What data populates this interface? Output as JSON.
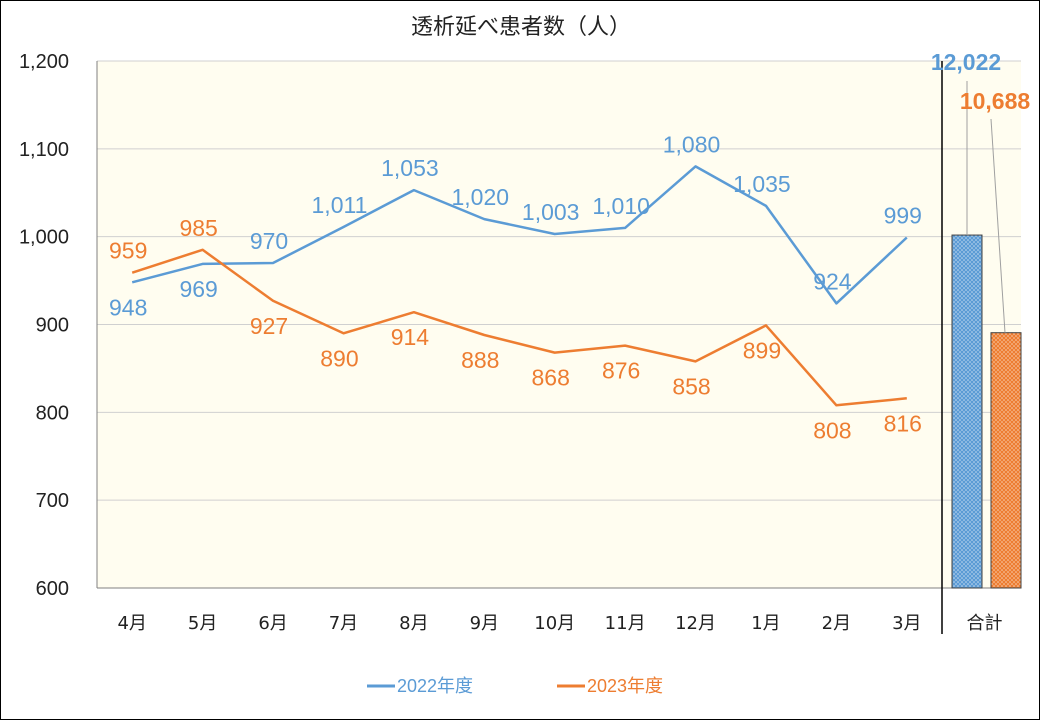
{
  "chart_data": {
    "type": "line",
    "title": "透析延べ患者数（人）",
    "categories": [
      "4月",
      "5月",
      "6月",
      "7月",
      "8月",
      "9月",
      "10月",
      "11月",
      "12月",
      "1月",
      "2月",
      "3月"
    ],
    "ylim": [
      600,
      1200
    ],
    "yticks": [
      600,
      700,
      800,
      900,
      1000,
      1100,
      1200
    ],
    "ytick_labels": [
      "600",
      "700",
      "800",
      "900",
      "1,000",
      "1,100",
      "1,200"
    ],
    "grid": true,
    "legend_position": "bottom",
    "series": [
      {
        "name": "2022年度",
        "color": "#5b9bd5",
        "values": [
          948,
          969,
          970,
          1011,
          1053,
          1020,
          1003,
          1010,
          1080,
          1035,
          924,
          999
        ],
        "labels": [
          "948",
          "969",
          "970",
          "1,011",
          "1,053",
          "1,020",
          "1,003",
          "1,010",
          "1,080",
          "1,035",
          "924",
          "999"
        ],
        "total": 12022,
        "total_label": "12,022"
      },
      {
        "name": "2023年度",
        "color": "#ed7d31",
        "values": [
          959,
          985,
          927,
          890,
          914,
          888,
          868,
          876,
          858,
          899,
          808,
          816
        ],
        "labels": [
          "959",
          "985",
          "927",
          "890",
          "914",
          "888",
          "868",
          "876",
          "858",
          "899",
          "808",
          "816"
        ],
        "total": 10688,
        "total_label": "10,688"
      }
    ],
    "total_category": "合計",
    "plot_background": "#fffdf0"
  }
}
